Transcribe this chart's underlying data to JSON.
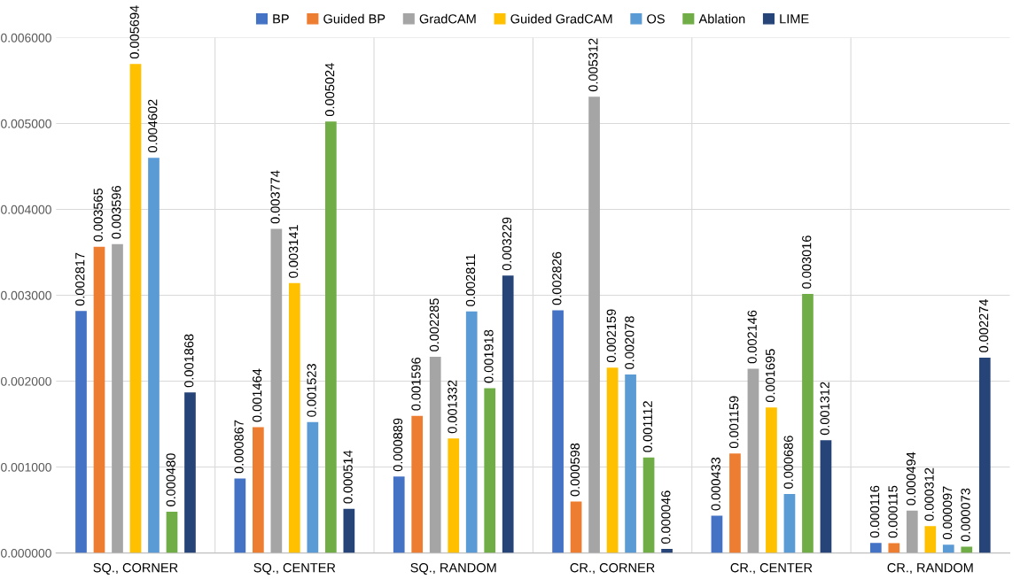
{
  "chart_data": {
    "type": "bar",
    "categories": [
      "SQ., CORNER",
      "SQ., CENTER",
      "SQ., RANDOM",
      "CR., CORNER",
      "CR., CENTER",
      "CR., RANDOM"
    ],
    "series": [
      {
        "name": "BP",
        "color": "#4472c4",
        "values": [
          0.002817,
          0.000867,
          0.000889,
          0.002826,
          0.000433,
          0.000116
        ],
        "value_labels": [
          "0.002817",
          "0.000867",
          "0.000889",
          "0.002826",
          "0.000433",
          "0.000116"
        ]
      },
      {
        "name": "Guided BP",
        "color": "#ed7d31",
        "values": [
          0.003565,
          0.001464,
          0.001596,
          0.000598,
          0.001159,
          0.000115
        ],
        "value_labels": [
          "0.003565",
          "0.001464",
          "0.001596",
          "0.000598",
          "0.001159",
          "0.000115"
        ]
      },
      {
        "name": "GradCAM",
        "color": "#a5a5a5",
        "values": [
          0.003596,
          0.003774,
          0.002285,
          0.005312,
          0.002146,
          0.000494
        ],
        "value_labels": [
          "0.003596",
          "0.003774",
          "0.002285",
          "0.005312",
          "0.002146",
          "0.000494"
        ]
      },
      {
        "name": "Guided GradCAM",
        "color": "#ffc000",
        "values": [
          0.005694,
          0.003141,
          0.001332,
          0.002159,
          0.001695,
          0.000312
        ],
        "value_labels": [
          "0.005694",
          "0.003141",
          "0.001332",
          "0.002159",
          "0.001695",
          "0.000312"
        ]
      },
      {
        "name": "OS",
        "color": "#5b9bd5",
        "values": [
          0.004602,
          0.001523,
          0.002811,
          0.002078,
          0.000686,
          9.7e-05
        ],
        "value_labels": [
          "0.004602",
          "0.001523",
          "0.002811",
          "0.002078",
          "0.000686",
          "0.000097"
        ]
      },
      {
        "name": "Ablation",
        "color": "#70ad47",
        "values": [
          0.00048,
          0.005024,
          0.001918,
          0.001112,
          0.003016,
          7.3e-05
        ],
        "value_labels": [
          "0.000480",
          "0.005024",
          "0.001918",
          "0.001112",
          "0.003016",
          "0.000073"
        ]
      },
      {
        "name": "LIME",
        "color": "#264478",
        "values": [
          0.001868,
          0.000514,
          0.003229,
          4.6e-05,
          0.001312,
          0.002274
        ],
        "value_labels": [
          "0.001868",
          "0.000514",
          "0.003229",
          "0.000046",
          "0.001312",
          "0.002274"
        ]
      }
    ],
    "ylim": [
      0,
      0.006
    ],
    "yticks": [
      {
        "value": 0,
        "label": "0.000000"
      },
      {
        "value": 0.001,
        "label": "0.001000"
      },
      {
        "value": 0.002,
        "label": "0.002000"
      },
      {
        "value": 0.003,
        "label": "0.003000"
      },
      {
        "value": 0.004,
        "label": "0.004000"
      },
      {
        "value": 0.005,
        "label": "0.005000"
      },
      {
        "value": 0.006,
        "label": "0.006000"
      }
    ],
    "grid": true,
    "legend": "top"
  }
}
